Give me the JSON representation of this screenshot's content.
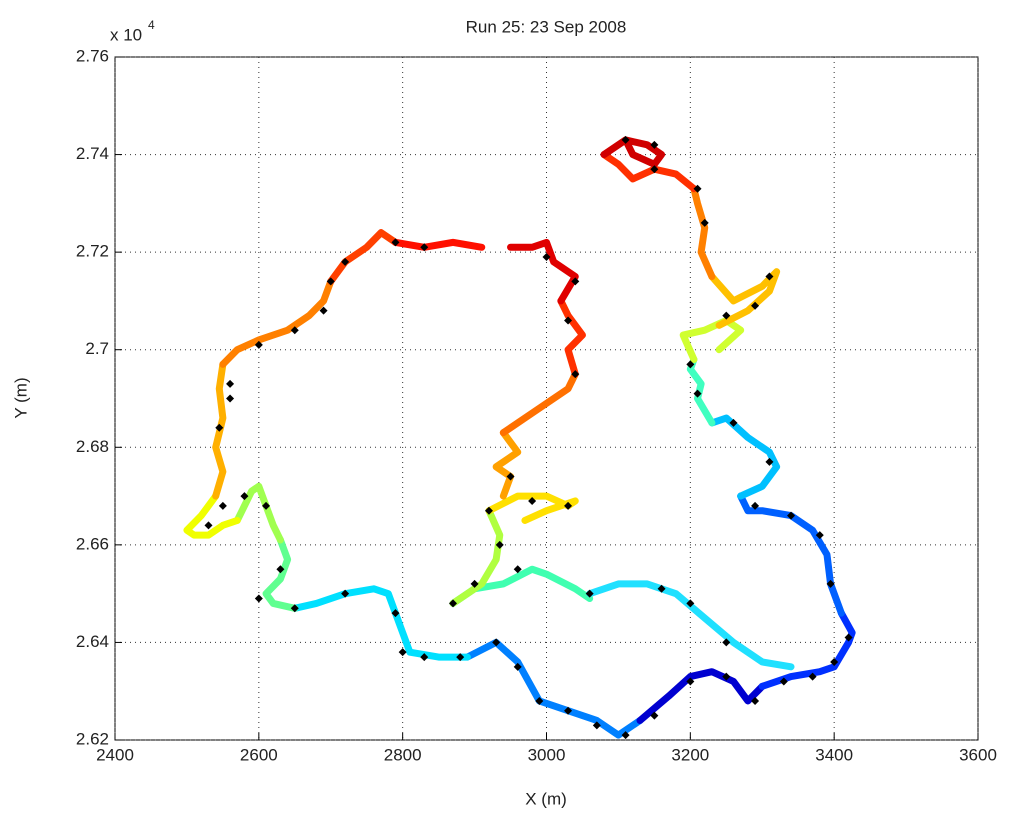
{
  "chart_data": {
    "type": "scatter",
    "title": "Run 25: 23 Sep 2008",
    "x_label": "X (m)",
    "y_label": "Y (m)",
    "y_multiplier": "x 10",
    "y_multiplier_exponent": "4",
    "xlim": [
      2400,
      3600
    ],
    "xticks": [
      2400,
      2600,
      2800,
      3000,
      3200,
      3400,
      3600
    ],
    "ylim": [
      2.62,
      2.76
    ],
    "yticks": [
      2.62,
      2.64,
      2.66,
      2.68,
      2.7,
      2.72,
      2.74,
      2.76
    ],
    "grid": true,
    "series": [
      {
        "color": "#0080ff",
        "x": [
          2890,
          2930,
          2960,
          2990,
          3030,
          3070,
          3100,
          3130
        ],
        "y": [
          2.637,
          2.64,
          2.636,
          2.628,
          2.626,
          2.624,
          2.621,
          2.624
        ]
      },
      {
        "color": "#0000d0",
        "x": [
          3130,
          3170,
          3200,
          3230,
          3260,
          3280,
          3300
        ],
        "y": [
          2.624,
          2.629,
          2.633,
          2.634,
          2.632,
          2.628,
          2.631
        ]
      },
      {
        "color": "#0030ff",
        "x": [
          3300,
          3340,
          3380,
          3400,
          3420,
          3425,
          3410
        ],
        "y": [
          2.631,
          2.633,
          2.634,
          2.635,
          2.64,
          2.642,
          2.646
        ]
      },
      {
        "color": "#0060ff",
        "x": [
          3410,
          3395,
          3390,
          3370,
          3340,
          3300,
          3280,
          3270
        ],
        "y": [
          2.646,
          2.652,
          2.658,
          2.663,
          2.666,
          2.667,
          2.667,
          2.67
        ]
      },
      {
        "color": "#00c0ff",
        "x": [
          3270,
          3300,
          3320,
          3310,
          3280,
          3250,
          3230
        ],
        "y": [
          2.67,
          2.672,
          2.676,
          2.679,
          2.682,
          2.686,
          2.685
        ]
      },
      {
        "color": "#40ffc0",
        "x": [
          3230,
          3210,
          3215,
          3200,
          3205
        ],
        "y": [
          2.685,
          2.69,
          2.693,
          2.696,
          2.698
        ]
      },
      {
        "color": "#d0ff30",
        "x": [
          3205,
          3190,
          3220,
          3250,
          3270,
          3240
        ],
        "y": [
          2.698,
          2.703,
          2.704,
          2.706,
          2.704,
          2.7
        ]
      },
      {
        "color": "#ffc000",
        "x": [
          3240,
          3280,
          3310,
          3320,
          3300,
          3260,
          3230
        ],
        "y": [
          2.705,
          2.708,
          2.712,
          2.716,
          2.713,
          2.71,
          2.715
        ]
      },
      {
        "color": "#ff8000",
        "x": [
          3230,
          3215,
          3220,
          3210,
          3205
        ],
        "y": [
          2.715,
          2.72,
          2.725,
          2.73,
          2.733
        ]
      },
      {
        "color": "#ff3000",
        "x": [
          3205,
          3180,
          3150,
          3120,
          3100,
          3080
        ],
        "y": [
          2.733,
          2.736,
          2.737,
          2.735,
          2.738,
          2.74
        ]
      },
      {
        "color": "#d00000",
        "x": [
          3080,
          3110,
          3140,
          3160,
          3150,
          3120,
          3110
        ],
        "y": [
          2.74,
          2.743,
          2.742,
          2.74,
          2.738,
          2.74,
          2.743
        ]
      },
      {
        "color": "#00e0ff",
        "x": [
          2890,
          2850,
          2810,
          2800,
          2790,
          2780,
          2760,
          2720,
          2680,
          2650
        ],
        "y": [
          2.637,
          2.637,
          2.638,
          2.642,
          2.646,
          2.65,
          2.651,
          2.65,
          2.648,
          2.647
        ]
      },
      {
        "color": "#60ff90",
        "x": [
          2650,
          2620,
          2610,
          2630,
          2640,
          2630
        ],
        "y": [
          2.647,
          2.648,
          2.65,
          2.653,
          2.657,
          2.661
        ]
      },
      {
        "color": "#a0ff50",
        "x": [
          2630,
          2620,
          2610,
          2600,
          2590,
          2580,
          2570
        ],
        "y": [
          2.661,
          2.664,
          2.668,
          2.672,
          2.671,
          2.668,
          2.665
        ]
      },
      {
        "color": "#f0ff00",
        "x": [
          2570,
          2550,
          2530,
          2510,
          2500,
          2520,
          2540
        ],
        "y": [
          2.665,
          2.664,
          2.662,
          2.662,
          2.663,
          2.666,
          2.67
        ]
      },
      {
        "color": "#ffb000",
        "x": [
          2540,
          2550,
          2540,
          2550,
          2545,
          2550
        ],
        "y": [
          2.67,
          2.675,
          2.68,
          2.686,
          2.692,
          2.697
        ]
      },
      {
        "color": "#ff8000",
        "x": [
          2550,
          2570,
          2600,
          2640,
          2670,
          2690,
          2700
        ],
        "y": [
          2.697,
          2.7,
          2.702,
          2.704,
          2.707,
          2.71,
          2.714
        ]
      },
      {
        "color": "#ff4000",
        "x": [
          2700,
          2720,
          2750,
          2770,
          2790
        ],
        "y": [
          2.714,
          2.718,
          2.721,
          2.724,
          2.722
        ]
      },
      {
        "color": "#ff1000",
        "x": [
          2790,
          2830,
          2870,
          2910
        ],
        "y": [
          2.722,
          2.721,
          2.722,
          2.721
        ]
      },
      {
        "color": "#40ffb0",
        "x": [
          2870,
          2900,
          2940,
          2980,
          3000,
          3040,
          3060
        ],
        "y": [
          2.648,
          2.651,
          2.652,
          2.655,
          2.654,
          2.651,
          2.649
        ]
      },
      {
        "color": "#20e0ff",
        "x": [
          3060,
          3100,
          3140,
          3180,
          3220,
          3260,
          3300,
          3340
        ],
        "y": [
          2.65,
          2.652,
          2.652,
          2.65,
          2.645,
          2.64,
          2.636,
          2.635
        ]
      },
      {
        "color": "#b0ff40",
        "x": [
          2870,
          2910,
          2930,
          2935,
          2920
        ],
        "y": [
          2.648,
          2.652,
          2.657,
          2.662,
          2.667
        ]
      },
      {
        "color": "#ffe000",
        "x": [
          2920,
          2960,
          3000,
          3030,
          3040,
          3000,
          2970
        ],
        "y": [
          2.667,
          2.67,
          2.67,
          2.668,
          2.669,
          2.667,
          2.665
        ]
      },
      {
        "color": "#ffa000",
        "x": [
          2940,
          2950,
          2930,
          2960,
          2940
        ],
        "y": [
          2.67,
          2.674,
          2.676,
          2.679,
          2.683
        ]
      },
      {
        "color": "#ff7000",
        "x": [
          2940,
          2980,
          3010,
          3030,
          3040
        ],
        "y": [
          2.683,
          2.687,
          2.69,
          2.692,
          2.695
        ]
      },
      {
        "color": "#ff3000",
        "x": [
          3040,
          3030,
          3050,
          3030,
          3020
        ],
        "y": [
          2.695,
          2.7,
          2.703,
          2.707,
          2.71
        ]
      },
      {
        "color": "#e00000",
        "x": [
          3020,
          3040,
          3010,
          3000,
          2980,
          2950
        ],
        "y": [
          2.71,
          2.715,
          2.718,
          2.722,
          2.721,
          2.721
        ]
      },
      {
        "color": "#000000",
        "marker": "diamond",
        "x": [
          2530,
          2550,
          2545,
          2560,
          2600,
          2650,
          2690,
          2700,
          2720,
          2790,
          2830,
          2790,
          2800,
          2830,
          2880,
          2930,
          2960,
          2990,
          3030,
          3070,
          3110,
          3150,
          3200,
          3250,
          3290,
          3330,
          3370,
          3400,
          3420,
          3395,
          3380,
          3340,
          3290,
          3310,
          3260,
          3210,
          3200,
          3250,
          3290,
          3310,
          3220,
          3210,
          3150,
          3110,
          3150,
          2600,
          2630,
          2610,
          2580,
          2650,
          2720,
          2870,
          2900,
          2935,
          2920,
          2980,
          3030,
          2950,
          3040,
          3030,
          3000,
          3040,
          3060,
          3160,
          3200,
          3250,
          2560,
          2960
        ],
        "y": [
          2.664,
          2.668,
          2.684,
          2.69,
          2.701,
          2.704,
          2.708,
          2.714,
          2.718,
          2.722,
          2.721,
          2.646,
          2.638,
          2.637,
          2.637,
          2.64,
          2.635,
          2.628,
          2.626,
          2.623,
          2.621,
          2.625,
          2.632,
          2.633,
          2.628,
          2.632,
          2.633,
          2.636,
          2.641,
          2.652,
          2.662,
          2.666,
          2.668,
          2.677,
          2.685,
          2.691,
          2.697,
          2.707,
          2.709,
          2.715,
          2.726,
          2.733,
          2.737,
          2.743,
          2.742,
          2.649,
          2.655,
          2.668,
          2.67,
          2.647,
          2.65,
          2.648,
          2.652,
          2.66,
          2.667,
          2.669,
          2.668,
          2.674,
          2.695,
          2.706,
          2.719,
          2.714,
          2.65,
          2.651,
          2.648,
          2.64,
          2.693,
          2.655
        ]
      }
    ]
  }
}
